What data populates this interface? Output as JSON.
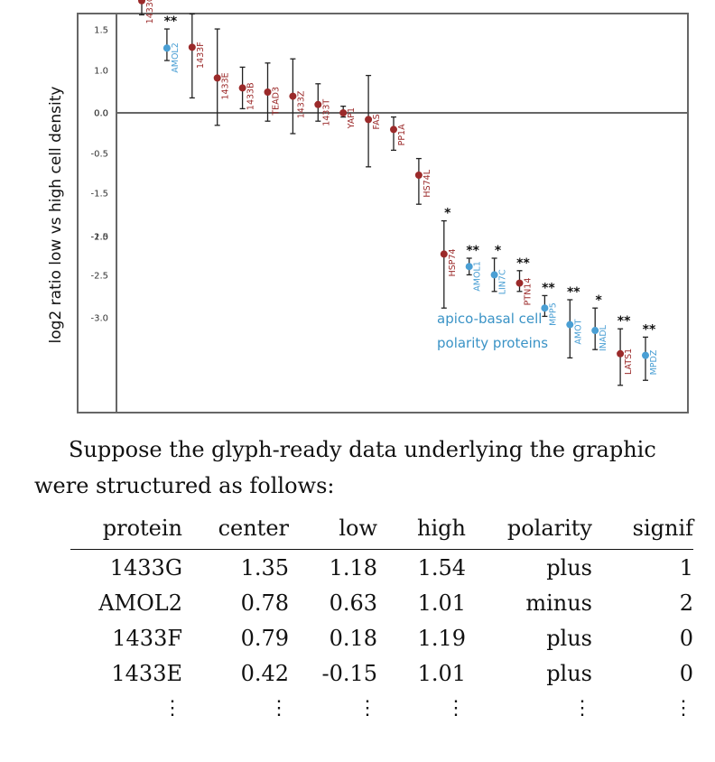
{
  "chart_data": {
    "type": "scatter",
    "ylabel": "log2 ratio low vs high cell density",
    "yticks": [
      "1.5",
      "1.0",
      "0.0",
      "0.0",
      "-0.5",
      "-1.5",
      "-1.5",
      "-2.0",
      "-2.5",
      "-3.0"
    ],
    "ylim": [
      -4.0,
      1.8
    ],
    "legend_text": [
      "apico-basal cell",
      "polarity proteins"
    ],
    "colors": {
      "plus": "#9b2a2a",
      "minus": "#4a9fd4",
      "axis": "#666666"
    },
    "points": [
      {
        "protein": "1433G",
        "center": 1.35,
        "low": 1.18,
        "high": 1.54,
        "polarity": "plus",
        "stars": "*"
      },
      {
        "protein": "AMOL2",
        "center": 0.78,
        "low": 0.63,
        "high": 1.01,
        "polarity": "minus",
        "stars": "**"
      },
      {
        "protein": "1433F",
        "center": 0.79,
        "low": 0.18,
        "high": 1.19,
        "polarity": "plus",
        "stars": ""
      },
      {
        "protein": "1433E",
        "center": 0.42,
        "low": -0.15,
        "high": 1.01,
        "polarity": "plus",
        "stars": ""
      },
      {
        "protein": "1433B",
        "center": 0.3,
        "low": 0.05,
        "high": 0.55,
        "polarity": "plus",
        "stars": ""
      },
      {
        "protein": "TEAD3",
        "center": 0.25,
        "low": -0.1,
        "high": 0.6,
        "polarity": "plus",
        "stars": ""
      },
      {
        "protein": "1433Z",
        "center": 0.2,
        "low": -0.25,
        "high": 0.65,
        "polarity": "plus",
        "stars": ""
      },
      {
        "protein": "1433T",
        "center": 0.1,
        "low": -0.1,
        "high": 0.35,
        "polarity": "plus",
        "stars": ""
      },
      {
        "protein": "YAP1",
        "center": 0.0,
        "low": -0.05,
        "high": 0.08,
        "polarity": "plus",
        "stars": ""
      },
      {
        "protein": "FAS",
        "center": -0.08,
        "low": -0.65,
        "high": 0.45,
        "polarity": "plus",
        "stars": ""
      },
      {
        "protein": "PP1A",
        "center": -0.2,
        "low": -0.45,
        "high": -0.05,
        "polarity": "plus",
        "stars": ""
      },
      {
        "protein": "HS74L",
        "center": -0.75,
        "low": -1.1,
        "high": -0.55,
        "polarity": "plus",
        "stars": ""
      },
      {
        "protein": "HSP74",
        "center": -1.7,
        "low": -2.35,
        "high": -1.3,
        "polarity": "plus",
        "stars": "*"
      },
      {
        "protein": "AMOL1",
        "center": -1.85,
        "low": -1.95,
        "high": -1.75,
        "polarity": "minus",
        "stars": "**"
      },
      {
        "protein": "LIN7C",
        "center": -1.95,
        "low": -2.15,
        "high": -1.75,
        "polarity": "minus",
        "stars": "*"
      },
      {
        "protein": "PTN14",
        "center": -2.05,
        "low": -2.15,
        "high": -1.9,
        "polarity": "plus",
        "stars": "**"
      },
      {
        "protein": "MPP5",
        "center": -2.35,
        "low": -2.45,
        "high": -2.2,
        "polarity": "minus",
        "stars": "**"
      },
      {
        "protein": "AMOT",
        "center": -2.55,
        "low": -2.95,
        "high": -2.25,
        "polarity": "minus",
        "stars": "**"
      },
      {
        "protein": "INADL",
        "center": -2.62,
        "low": -2.85,
        "high": -2.35,
        "polarity": "minus",
        "stars": "*"
      },
      {
        "protein": "LATS1",
        "center": -2.9,
        "low": -3.28,
        "high": -2.6,
        "polarity": "plus",
        "stars": "**"
      },
      {
        "protein": "MPDZ",
        "center": -2.92,
        "low": -3.22,
        "high": -2.7,
        "polarity": "minus",
        "stars": "**"
      }
    ]
  },
  "prose": {
    "line1": "Suppose the glyph-ready data underlying the graphic",
    "line2": "were structured as follows:"
  },
  "table": {
    "headers": [
      "protein",
      "center",
      "low",
      "high",
      "polarity",
      "signif"
    ],
    "rows": [
      [
        "1433G",
        "1.35",
        "1.18",
        "1.54",
        "plus",
        "1"
      ],
      [
        "AMOL2",
        "0.78",
        "0.63",
        "1.01",
        "minus",
        "2"
      ],
      [
        "1433F",
        "0.79",
        "0.18",
        "1.19",
        "plus",
        "0"
      ],
      [
        "1433E",
        "0.42",
        "-0.15",
        "1.01",
        "plus",
        "0"
      ]
    ],
    "ellipsis": "⋮"
  }
}
